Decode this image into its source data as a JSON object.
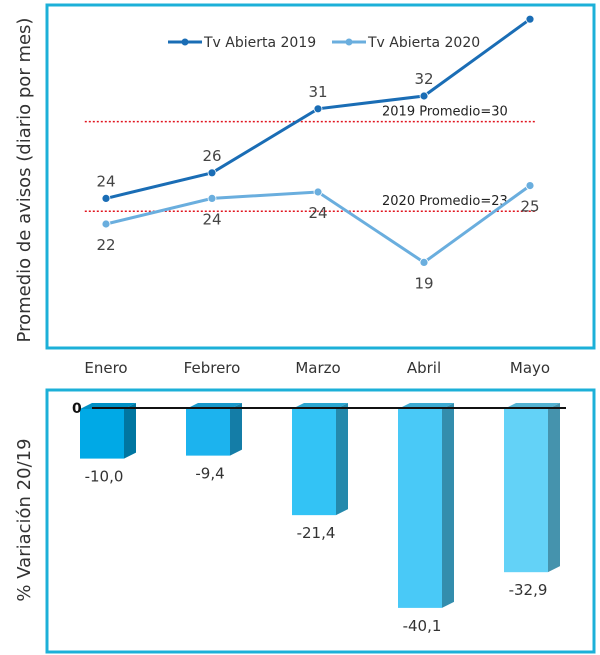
{
  "chart_data": [
    {
      "type": "line",
      "ylabel": "Promedio de avisos (diario por mes)",
      "categories": [
        "Enero",
        "Febrero",
        "Marzo",
        "Abril",
        "Mayo"
      ],
      "series": [
        {
          "name": "Tv Abierta 2019",
          "values": [
            24,
            26,
            31,
            32,
            38
          ],
          "labels": [
            "24",
            "26",
            "31",
            "32",
            ""
          ],
          "color": "#1a6db5"
        },
        {
          "name": "Tv Abierta 2020",
          "values": [
            22,
            24,
            24.5,
            19,
            25
          ],
          "labels": [
            "22",
            "24",
            "24",
            "19",
            "25"
          ],
          "color": "#6aaede"
        }
      ],
      "reference_lines": [
        {
          "label": "2019 Promedio=30",
          "value": 30,
          "x_range": [
            -0.2,
            4.0
          ],
          "color": "#e0141e"
        },
        {
          "label": "2020 Promedio=23",
          "value": 23,
          "x_range": [
            -0.2,
            4.0
          ],
          "color": "#e0141e"
        }
      ],
      "ylim": [
        10,
        40
      ],
      "legend": "top-center",
      "grid": false
    },
    {
      "type": "bar",
      "ylabel": "% Variación 20/19",
      "categories": [
        "Enero",
        "Febrero",
        "Marzo",
        "Abril",
        "Mayo"
      ],
      "values": [
        -10.0,
        -9.4,
        -21.4,
        -40.1,
        -32.9
      ],
      "value_labels": [
        "-10,0",
        "-9,4",
        "-21,4",
        "-40,1",
        "-32,9"
      ],
      "zero_label": "0",
      "colors": [
        "#00a9e6",
        "#1cb3ee",
        "#33c3f5",
        "#49c9f7",
        "#63d2f7"
      ],
      "ylim": [
        -45,
        0
      ],
      "grid": false
    }
  ]
}
